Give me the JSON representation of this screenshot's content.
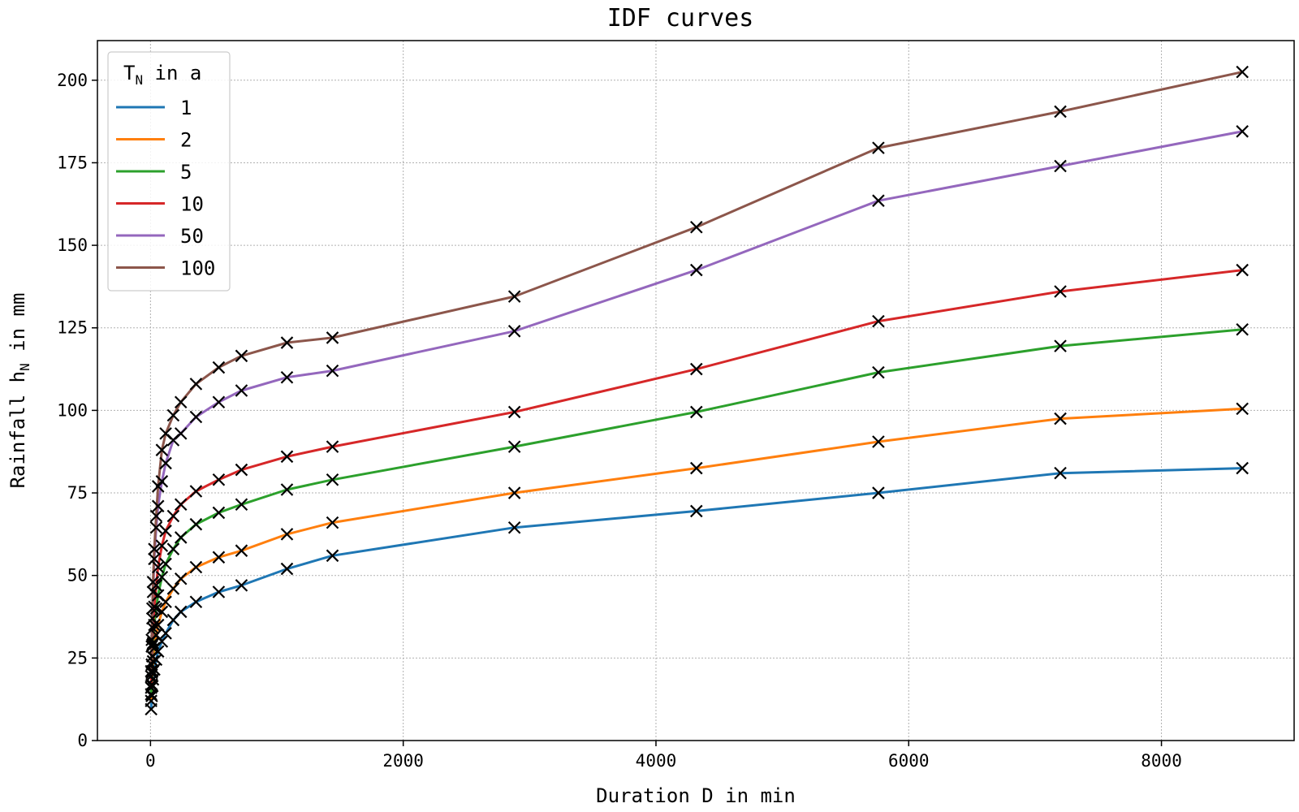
{
  "chart_data": {
    "type": "line",
    "title": "IDF curves",
    "xlabel": "Duration D in min",
    "ylabel_main": "Rainfall h",
    "ylabel_sub": "N",
    "ylabel_tail": " in mm",
    "xlim": [
      -420,
      9050
    ],
    "ylim": [
      0,
      212
    ],
    "xticks": [
      0,
      2000,
      4000,
      6000,
      8000
    ],
    "yticks": [
      0,
      25,
      50,
      75,
      100,
      125,
      150,
      175,
      200
    ],
    "grid": true,
    "legend": {
      "placement": "top-left",
      "title_main": "T",
      "title_sub": "N",
      "title_tail": " in a"
    },
    "x": [
      5,
      10,
      15,
      20,
      30,
      45,
      60,
      90,
      120,
      180,
      240,
      360,
      540,
      720,
      1080,
      1440,
      2880,
      4320,
      5760,
      7200,
      8640
    ],
    "series": [
      {
        "name": "1",
        "color": "#1f77b4",
        "values": [
          9.5,
          13.5,
          16.5,
          18.5,
          21.5,
          24.5,
          27.0,
          30.0,
          32.5,
          36.5,
          39.0,
          42.0,
          45.0,
          47.0,
          52.0,
          56.0,
          64.5,
          69.5,
          75.0,
          81.0,
          82.5
        ]
      },
      {
        "name": "2",
        "color": "#ff7f0e",
        "values": [
          12.0,
          17.0,
          21.0,
          24.0,
          28.0,
          32.0,
          35.0,
          39.0,
          42.0,
          46.0,
          49.0,
          52.5,
          55.5,
          57.5,
          62.5,
          66.0,
          75.0,
          82.5,
          90.5,
          97.5,
          100.5
        ]
      },
      {
        "name": "5",
        "color": "#2ca02c",
        "values": [
          14.0,
          20.5,
          25.5,
          29.5,
          35.0,
          40.0,
          44.0,
          49.5,
          53.5,
          58.0,
          61.5,
          65.5,
          69.0,
          71.5,
          76.0,
          79.0,
          89.0,
          99.5,
          111.5,
          119.5,
          124.5
        ]
      },
      {
        "name": "10",
        "color": "#d62728",
        "values": [
          16.0,
          23.0,
          29.0,
          34.0,
          40.5,
          47.0,
          52.5,
          59.0,
          63.5,
          68.0,
          71.5,
          75.5,
          79.0,
          82.0,
          86.0,
          89.0,
          99.5,
          112.5,
          127.0,
          136.0,
          142.5
        ]
      },
      {
        "name": "50",
        "color": "#9467bd",
        "values": [
          19.5,
          28.5,
          37.0,
          45.0,
          55.0,
          64.5,
          71.0,
          78.5,
          84.0,
          91.0,
          93.0,
          98.0,
          102.5,
          106.0,
          110.0,
          112.0,
          124.0,
          142.5,
          163.5,
          174.0,
          184.5
        ]
      },
      {
        "name": "100",
        "color": "#8c564b",
        "values": [
          21.0,
          30.5,
          40.0,
          48.0,
          58.0,
          68.0,
          77.0,
          88.0,
          93.0,
          98.5,
          102.5,
          108.0,
          113.0,
          116.5,
          120.5,
          122.0,
          134.5,
          155.5,
          179.5,
          190.5,
          202.5
        ]
      }
    ]
  }
}
